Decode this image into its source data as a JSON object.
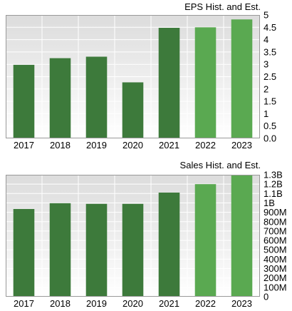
{
  "colors": {
    "historical": "#3d7a3b",
    "estimate": "#5aa951",
    "plot_bg_top": "#dcdcdc",
    "plot_bg_bottom": "#ffffff",
    "grid": "#ffffff",
    "border": "#999999"
  },
  "chart_data": [
    {
      "type": "bar",
      "title": "EPS Hist. and Est.",
      "categories": [
        "2017",
        "2018",
        "2019",
        "2020",
        "2021",
        "2022",
        "2023"
      ],
      "series": [
        {
          "values": [
            2.98,
            3.25,
            3.31,
            2.27,
            4.48,
            4.5,
            4.82
          ]
        }
      ],
      "estimate_categories": [
        "2022",
        "2023"
      ],
      "ylim": [
        0,
        5
      ],
      "yticks": [
        0,
        0.5,
        1,
        1.5,
        2,
        2.5,
        3,
        3.5,
        4,
        4.5,
        5
      ],
      "ytick_labels": [
        "0.0",
        "0.5",
        "1",
        "1.5",
        "2",
        "2.5",
        "3",
        "3.5",
        "4",
        "4.5",
        "5"
      ],
      "grid": true,
      "xlabel": "",
      "ylabel": ""
    },
    {
      "type": "bar",
      "title": "Sales Hist. and Est.",
      "categories": [
        "2017",
        "2018",
        "2019",
        "2020",
        "2021",
        "2022",
        "2023"
      ],
      "series": [
        {
          "values": [
            935,
            997,
            990,
            990,
            1110,
            1200,
            1300
          ]
        }
      ],
      "units": "millions",
      "estimate_categories": [
        "2022",
        "2023"
      ],
      "ylim": [
        0,
        1300
      ],
      "yticks": [
        0,
        100,
        200,
        300,
        400,
        500,
        600,
        700,
        800,
        900,
        1000,
        1100,
        1200,
        1300
      ],
      "ytick_labels": [
        "0",
        "100M",
        "200M",
        "300M",
        "400M",
        "500M",
        "600M",
        "700M",
        "800M",
        "900M",
        "1B",
        "1.1B",
        "1.2B",
        "1.3B"
      ],
      "grid": true,
      "xlabel": "",
      "ylabel": ""
    }
  ]
}
